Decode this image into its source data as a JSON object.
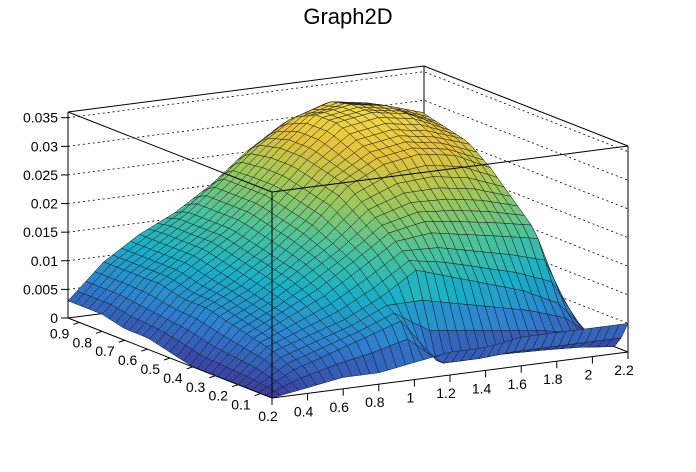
{
  "chart_data": {
    "type": "surface",
    "title": "Graph2D",
    "x": [
      0.2,
      0.4,
      0.6,
      0.8,
      1.0,
      1.2,
      1.4,
      1.6,
      1.8,
      2.0,
      2.2
    ],
    "y": [
      0.05,
      0.1,
      0.2,
      0.3,
      0.4,
      0.5,
      0.6,
      0.7,
      0.8,
      0.9,
      0.95
    ],
    "z": [
      [
        0.0,
        0.001,
        0.002,
        0.002,
        0.003,
        0.004,
        0.004,
        0.005,
        0.005,
        0.005,
        0.005
      ],
      [
        0.0,
        0.003,
        0.005,
        0.007,
        0.009,
        0.0,
        0.0,
        0.0,
        0.0,
        0.0,
        0.0
      ],
      [
        0.0,
        0.005,
        0.007,
        0.009,
        0.012,
        0.016,
        0.014,
        0.012,
        0.01,
        0.007,
        0.0
      ],
      [
        0.0,
        0.006,
        0.009,
        0.012,
        0.016,
        0.02,
        0.021,
        0.02,
        0.019,
        0.018,
        0.0
      ],
      [
        0.0,
        0.007,
        0.01,
        0.014,
        0.018,
        0.023,
        0.025,
        0.025,
        0.024,
        0.022,
        0.0
      ],
      [
        0.001,
        0.008,
        0.011,
        0.015,
        0.02,
        0.026,
        0.029,
        0.03,
        0.029,
        0.026,
        0.0
      ],
      [
        0.002,
        0.008,
        0.012,
        0.016,
        0.021,
        0.027,
        0.031,
        0.032,
        0.031,
        0.029,
        0.0
      ],
      [
        0.002,
        0.009,
        0.013,
        0.017,
        0.022,
        0.028,
        0.033,
        0.034,
        0.033,
        0.03,
        0.0
      ],
      [
        0.003,
        0.009,
        0.013,
        0.017,
        0.022,
        0.028,
        0.033,
        0.034,
        0.033,
        0.031,
        0.0
      ],
      [
        0.003,
        0.009,
        0.013,
        0.017,
        0.022,
        0.027,
        0.031,
        0.033,
        0.032,
        0.03,
        0.0
      ],
      [
        0.003,
        0.009,
        0.013,
        0.016,
        0.02,
        0.025,
        0.029,
        0.031,
        0.03,
        0.028,
        0.0
      ]
    ],
    "xlim": [
      0.2,
      2.2
    ],
    "ylim": [
      0.05,
      0.95
    ],
    "zlim": [
      0,
      0.036
    ],
    "x_ticks": [
      "0.2",
      "0.4",
      "0.6",
      "0.8",
      "1",
      "1.2",
      "1.4",
      "1.6",
      "1.8",
      "2",
      "2.2"
    ],
    "y_ticks": [
      "0.1",
      "0.2",
      "0.3",
      "0.4",
      "0.5",
      "0.6",
      "0.7",
      "0.8",
      "0.9"
    ],
    "z_ticks": [
      "0",
      "0.005",
      "0.01",
      "0.015",
      "0.02",
      "0.025",
      "0.03",
      "0.035"
    ],
    "grid": true,
    "colormap": [
      "#3a3ea0",
      "#2f7fd0",
      "#18b0c8",
      "#4cc39a",
      "#9ec85a",
      "#e6c23a",
      "#f5e24a"
    ]
  }
}
